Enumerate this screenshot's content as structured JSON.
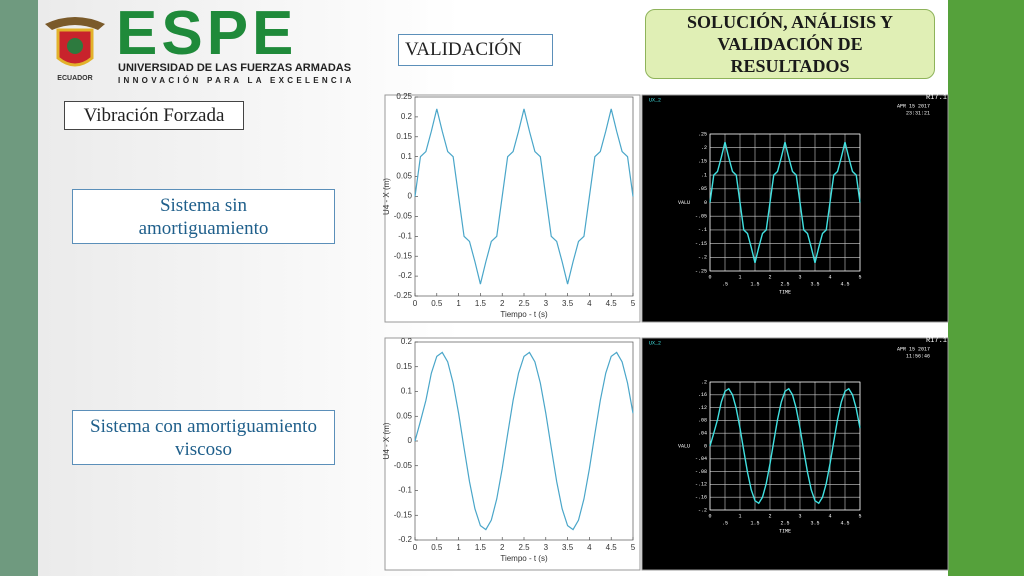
{
  "slide": {
    "logo_name": "ESPE",
    "logo_subtitle": "UNIVERSIDAD DE LAS FUERZAS ARMADAS",
    "logo_motto": "INNOVACIÓN PARA LA EXCELENCIA",
    "logo_country": "ECUADOR",
    "header": "SOLUCIÓN, ANÁLISIS Y VALIDACIÓN DE RESULTADOS",
    "section": "VALIDACIÓN",
    "topic": "Vibración Forzada",
    "case_1": "Sistema sin amortiguamiento",
    "case_2": "Sistema con amortiguamiento viscoso"
  },
  "chart_data": [
    {
      "type": "line",
      "ylabel": "U4 - X (m)",
      "xlabel": "Tiempo - t (s)",
      "color": "#4aa6c9",
      "background": "#ffffff",
      "grid": false,
      "x": [
        0,
        0.125,
        0.25,
        0.375,
        0.5,
        0.625,
        0.75,
        0.875,
        1,
        1.125,
        1.25,
        1.375,
        1.5,
        1.625,
        1.75,
        1.875,
        2,
        2.125,
        2.25,
        2.375,
        2.5,
        2.625,
        2.75,
        2.875,
        3,
        3.125,
        3.25,
        3.375,
        3.5,
        3.625,
        3.75,
        3.875,
        4,
        4.125,
        4.25,
        4.375,
        4.5,
        4.625,
        4.75,
        4.875,
        5
      ],
      "values": [
        0,
        0.1,
        0.113,
        0.164,
        0.22,
        0.164,
        0.113,
        0.1,
        0,
        -0.1,
        -0.113,
        -0.164,
        -0.22,
        -0.164,
        -0.113,
        -0.1,
        0,
        0.1,
        0.113,
        0.164,
        0.22,
        0.164,
        0.113,
        0.1,
        0,
        -0.1,
        -0.113,
        -0.164,
        -0.22,
        -0.164,
        -0.113,
        -0.1,
        0,
        0.1,
        0.113,
        0.164,
        0.22,
        0.164,
        0.113,
        0.1,
        0
      ],
      "xlim": [
        0,
        5
      ],
      "xticks": [
        0,
        0.5,
        1,
        1.5,
        2,
        2.5,
        3,
        3.5,
        4,
        4.5,
        5
      ],
      "ylim": [
        -0.25,
        0.25
      ],
      "yticks": [
        -0.25,
        -0.2,
        -0.15,
        -0.1,
        -0.05,
        0,
        0.05,
        0.1,
        0.15,
        0.2,
        0.25
      ]
    },
    {
      "type": "line",
      "title": "UX_2",
      "version": "R17.1",
      "date": "APR 15 2017",
      "time": "23:31:21",
      "ylabel": "VALU",
      "xlabel": "TIME",
      "color": "#40e0e0",
      "background": "#000000",
      "grid": true,
      "x": [
        0,
        0.125,
        0.25,
        0.375,
        0.5,
        0.625,
        0.75,
        0.875,
        1,
        1.125,
        1.25,
        1.375,
        1.5,
        1.625,
        1.75,
        1.875,
        2,
        2.125,
        2.25,
        2.375,
        2.5,
        2.625,
        2.75,
        2.875,
        3,
        3.125,
        3.25,
        3.375,
        3.5,
        3.625,
        3.75,
        3.875,
        4,
        4.125,
        4.25,
        4.375,
        4.5,
        4.625,
        4.75,
        4.875,
        5
      ],
      "values": [
        0,
        0.1,
        0.113,
        0.164,
        0.22,
        0.164,
        0.113,
        0.1,
        0,
        -0.1,
        -0.113,
        -0.164,
        -0.22,
        -0.164,
        -0.113,
        -0.1,
        0,
        0.1,
        0.113,
        0.164,
        0.22,
        0.164,
        0.113,
        0.1,
        0,
        -0.1,
        -0.113,
        -0.164,
        -0.22,
        -0.164,
        -0.113,
        -0.1,
        0,
        0.1,
        0.113,
        0.164,
        0.22,
        0.164,
        0.113,
        0.1,
        0
      ],
      "xlim": [
        0,
        5
      ],
      "xticks": [
        0,
        {
          "value": 0.5,
          "label": ".5"
        },
        1,
        1.5,
        2,
        2.5,
        3,
        3.5,
        4,
        4.5,
        5
      ],
      "ylim": [
        -0.25,
        0.25
      ],
      "yticks": [
        {
          "value": -0.25,
          "label": "-.25"
        },
        {
          "value": -0.2,
          "label": "-.2"
        },
        {
          "value": -0.15,
          "label": "-.15"
        },
        {
          "value": -0.1,
          "label": "-.1"
        },
        {
          "value": -0.05,
          "label": "-.05"
        },
        0,
        {
          "value": 0.05,
          "label": ".05"
        },
        {
          "value": 0.1,
          "label": ".1"
        },
        {
          "value": 0.15,
          "label": ".15"
        },
        {
          "value": 0.2,
          "label": ".2"
        },
        {
          "value": 0.25,
          "label": ".25"
        }
      ]
    },
    {
      "type": "line",
      "ylabel": "U4 - X (m)",
      "xlabel": "Tiempo - t (s)",
      "color": "#4aa6c9",
      "background": "#ffffff",
      "grid": false,
      "x": [
        0,
        0.125,
        0.25,
        0.375,
        0.5,
        0.625,
        0.75,
        0.875,
        1,
        1.125,
        1.25,
        1.375,
        1.5,
        1.625,
        1.75,
        1.875,
        2,
        2.125,
        2.25,
        2.375,
        2.5,
        2.625,
        2.75,
        2.875,
        3,
        3.125,
        3.25,
        3.375,
        3.5,
        3.625,
        3.75,
        3.875,
        4,
        4.125,
        4.25,
        4.375,
        4.5,
        4.625,
        4.75,
        4.875,
        5
      ],
      "values": [
        0,
        0.04,
        0.082,
        0.137,
        0.171,
        0.179,
        0.16,
        0.117,
        0.056,
        -0.014,
        -0.082,
        -0.137,
        -0.171,
        -0.179,
        -0.16,
        -0.117,
        -0.056,
        0.014,
        0.082,
        0.137,
        0.171,
        0.179,
        0.16,
        0.117,
        0.056,
        -0.014,
        -0.082,
        -0.137,
        -0.171,
        -0.179,
        -0.16,
        -0.117,
        -0.056,
        0.014,
        0.082,
        0.137,
        0.171,
        0.179,
        0.16,
        0.117,
        0.056
      ],
      "xlim": [
        0,
        5
      ],
      "xticks": [
        0,
        0.5,
        1,
        1.5,
        2,
        2.5,
        3,
        3.5,
        4,
        4.5,
        5
      ],
      "ylim": [
        -0.2,
        0.2
      ],
      "yticks": [
        -0.2,
        -0.15,
        -0.1,
        -0.05,
        0,
        0.05,
        0.1,
        0.15,
        0.2
      ]
    },
    {
      "type": "line",
      "title": "UX_2",
      "version": "R17.1",
      "date": "APR 15 2017",
      "time": "11:56:46",
      "ylabel": "VALU",
      "xlabel": "TIME",
      "color": "#40e0e0",
      "background": "#000000",
      "grid": true,
      "x": [
        0,
        0.125,
        0.25,
        0.375,
        0.5,
        0.625,
        0.75,
        0.875,
        1,
        1.125,
        1.25,
        1.375,
        1.5,
        1.625,
        1.75,
        1.875,
        2,
        2.125,
        2.25,
        2.375,
        2.5,
        2.625,
        2.75,
        2.875,
        3,
        3.125,
        3.25,
        3.375,
        3.5,
        3.625,
        3.75,
        3.875,
        4,
        4.125,
        4.25,
        4.375,
        4.5,
        4.625,
        4.75,
        4.875,
        5
      ],
      "values": [
        0,
        0.04,
        0.082,
        0.137,
        0.171,
        0.179,
        0.16,
        0.117,
        0.056,
        -0.014,
        -0.082,
        -0.137,
        -0.171,
        -0.179,
        -0.16,
        -0.117,
        -0.056,
        0.014,
        0.082,
        0.137,
        0.171,
        0.179,
        0.16,
        0.117,
        0.056,
        -0.014,
        -0.082,
        -0.137,
        -0.171,
        -0.179,
        -0.16,
        -0.117,
        -0.056,
        0.014,
        0.082,
        0.137,
        0.171,
        0.179,
        0.16,
        0.117,
        0.056
      ],
      "xlim": [
        0,
        5
      ],
      "xticks": [
        0,
        {
          "value": 0.5,
          "label": ".5"
        },
        1,
        1.5,
        2,
        2.5,
        3,
        3.5,
        4,
        4.5,
        5
      ],
      "ylim": [
        -0.2,
        0.2
      ],
      "yticks": [
        {
          "value": -0.2,
          "label": "-.2"
        },
        {
          "value": -0.16,
          "label": "-.16"
        },
        {
          "value": -0.12,
          "label": "-.12"
        },
        {
          "value": -0.08,
          "label": "-.08"
        },
        {
          "value": -0.04,
          "label": "-.04"
        },
        0,
        {
          "value": 0.04,
          "label": ".04"
        },
        {
          "value": 0.08,
          "label": ".08"
        },
        {
          "value": 0.12,
          "label": ".12"
        },
        {
          "value": 0.16,
          "label": ".16"
        },
        {
          "value": 0.2,
          "label": ".2"
        }
      ]
    }
  ]
}
